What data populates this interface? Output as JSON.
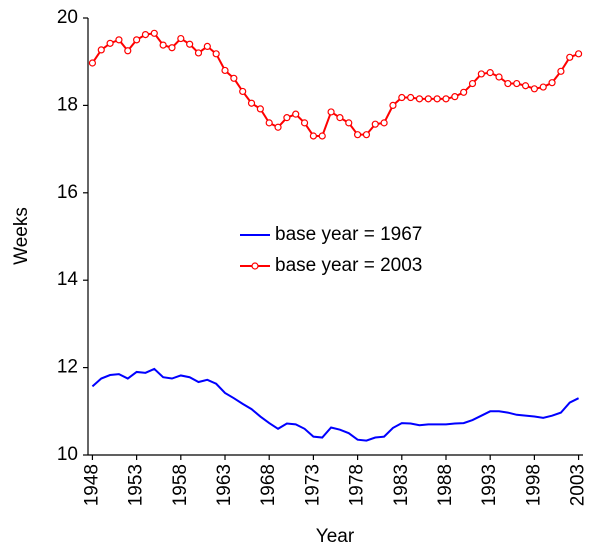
{
  "chart_data": {
    "type": "line",
    "x_label": "Year",
    "y_label": "Weeks",
    "x": [
      1948,
      1949,
      1950,
      1951,
      1952,
      1953,
      1954,
      1955,
      1956,
      1957,
      1958,
      1959,
      1960,
      1961,
      1962,
      1963,
      1964,
      1965,
      1966,
      1967,
      1968,
      1969,
      1970,
      1971,
      1972,
      1973,
      1974,
      1975,
      1976,
      1977,
      1978,
      1979,
      1980,
      1981,
      1982,
      1983,
      1984,
      1985,
      1986,
      1987,
      1988,
      1989,
      1990,
      1991,
      1992,
      1993,
      1994,
      1995,
      1996,
      1997,
      1998,
      1999,
      2000,
      2001,
      2002,
      2003
    ],
    "series": [
      {
        "name": "base year = 1967",
        "color": "#0000ff",
        "marker": false,
        "values": [
          11.57,
          11.75,
          11.83,
          11.85,
          11.75,
          11.9,
          11.88,
          11.97,
          11.78,
          11.75,
          11.82,
          11.78,
          11.67,
          11.72,
          11.63,
          11.42,
          11.3,
          11.17,
          11.05,
          10.88,
          10.73,
          10.6,
          10.72,
          10.7,
          10.6,
          10.42,
          10.4,
          10.63,
          10.58,
          10.5,
          10.35,
          10.33,
          10.4,
          10.42,
          10.62,
          10.73,
          10.72,
          10.68,
          10.7,
          10.7,
          10.7,
          10.72,
          10.73,
          10.8,
          10.9,
          11.0,
          11.0,
          10.97,
          10.92,
          10.9,
          10.88,
          10.85,
          10.9,
          10.97,
          11.2,
          11.3
        ]
      },
      {
        "name": "base year = 2003",
        "color": "#ff0000",
        "marker": true,
        "values": [
          18.97,
          19.27,
          19.42,
          19.5,
          19.25,
          19.5,
          19.62,
          19.65,
          19.38,
          19.32,
          19.53,
          19.4,
          19.2,
          19.35,
          19.18,
          18.8,
          18.62,
          18.32,
          18.05,
          17.92,
          17.6,
          17.5,
          17.72,
          17.8,
          17.6,
          17.3,
          17.3,
          17.85,
          17.72,
          17.6,
          17.33,
          17.33,
          17.57,
          17.6,
          18.0,
          18.18,
          18.18,
          18.15,
          18.15,
          18.15,
          18.15,
          18.2,
          18.3,
          18.5,
          18.72,
          18.75,
          18.65,
          18.5,
          18.5,
          18.45,
          18.38,
          18.42,
          18.52,
          18.78,
          19.1,
          19.18
        ]
      }
    ],
    "xlim": [
      1947.5,
      2003.5
    ],
    "xticks": [
      1948,
      1953,
      1958,
      1963,
      1968,
      1973,
      1978,
      1983,
      1988,
      1993,
      1998,
      2003
    ],
    "ylim": [
      10,
      20
    ],
    "yticks": [
      10,
      12,
      14,
      16,
      18,
      20
    ],
    "grid": false,
    "legend": "center"
  }
}
